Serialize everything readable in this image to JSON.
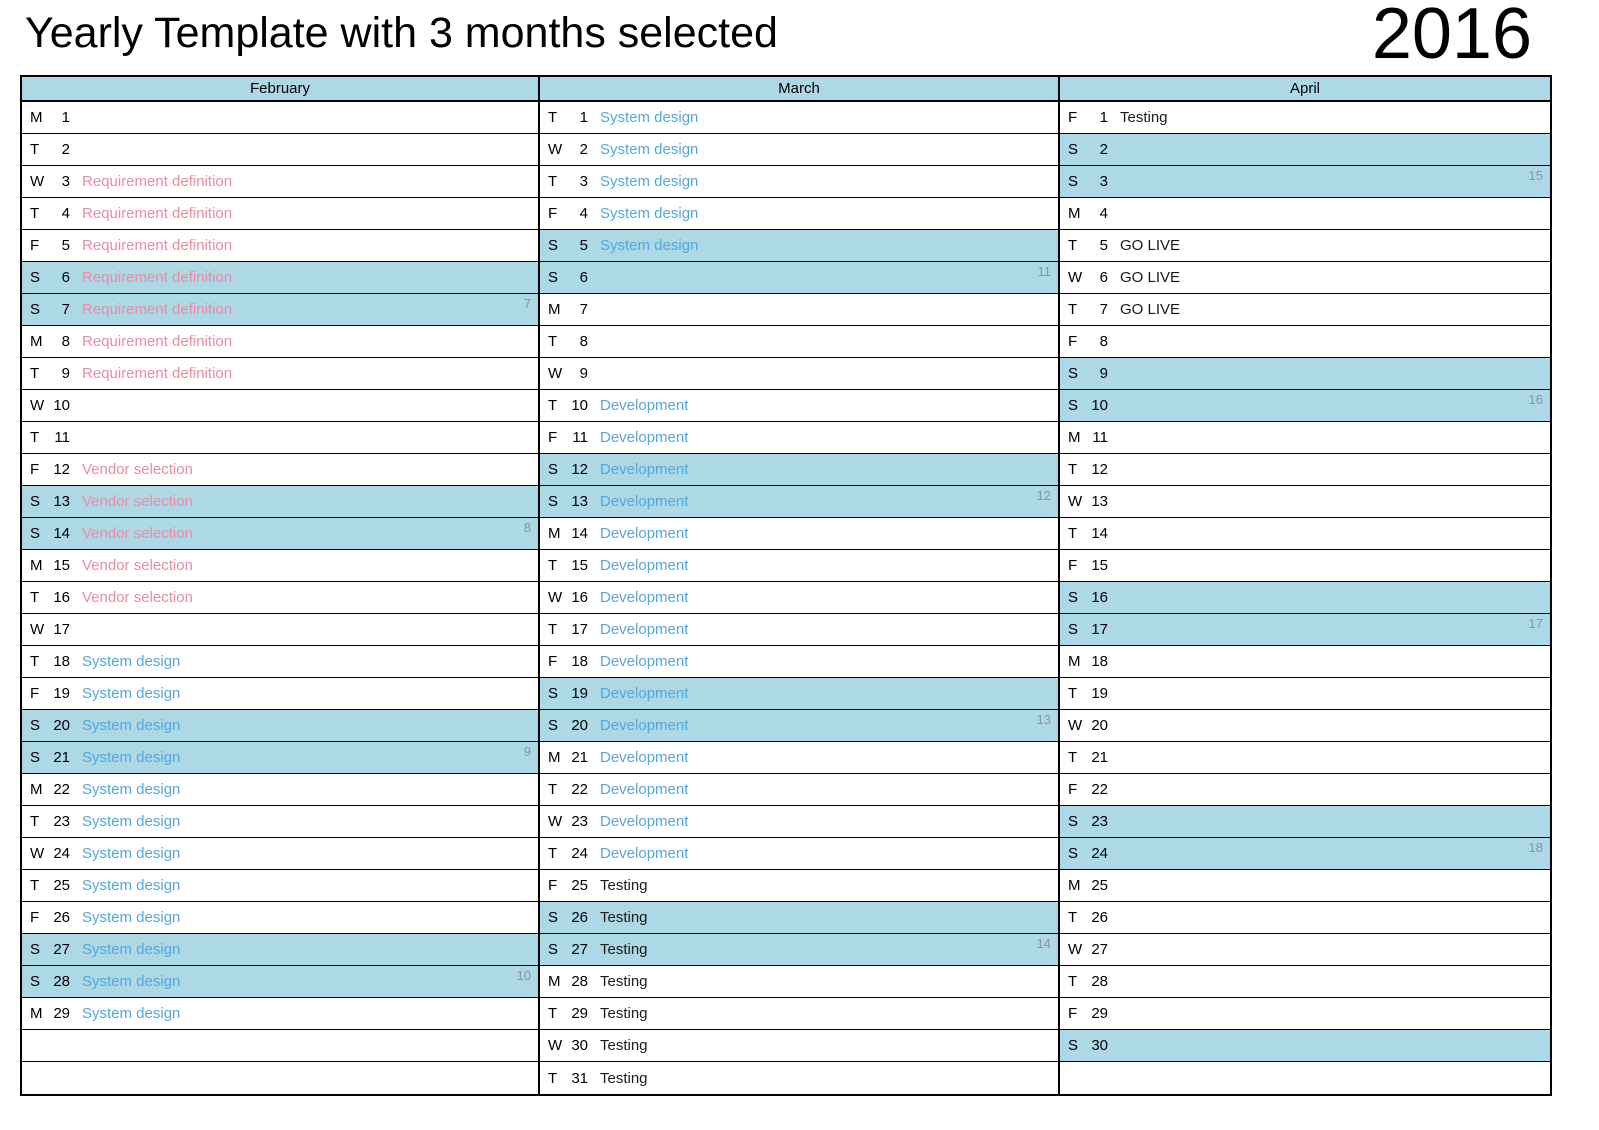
{
  "page": {
    "title": "Yearly Template with 3 months selected",
    "year": "2016"
  },
  "colors": {
    "accent_bg": "#ADD8E6",
    "border": "#000000",
    "week_number": "#8E9296",
    "text": {
      "pink": "#EC8BA0",
      "blue": "#53A7DC",
      "black": "#1A1A1A"
    }
  },
  "months": [
    {
      "name": "February",
      "filler_rows": 2,
      "days": [
        {
          "dow": "M",
          "date": 1
        },
        {
          "dow": "T",
          "date": 2
        },
        {
          "dow": "W",
          "date": 3,
          "event": "Requirement definition",
          "color": "pink"
        },
        {
          "dow": "T",
          "date": 4,
          "event": "Requirement definition",
          "color": "pink"
        },
        {
          "dow": "F",
          "date": 5,
          "event": "Requirement definition",
          "color": "pink"
        },
        {
          "dow": "S",
          "date": 6,
          "event": "Requirement definition",
          "color": "pink",
          "weekend": true
        },
        {
          "dow": "S",
          "date": 7,
          "event": "Requirement definition",
          "color": "pink",
          "weekend": true,
          "week": "7"
        },
        {
          "dow": "M",
          "date": 8,
          "event": "Requirement definition",
          "color": "pink"
        },
        {
          "dow": "T",
          "date": 9,
          "event": "Requirement definition",
          "color": "pink"
        },
        {
          "dow": "W",
          "date": 10
        },
        {
          "dow": "T",
          "date": 11
        },
        {
          "dow": "F",
          "date": 12,
          "event": "Vendor selection",
          "color": "pink"
        },
        {
          "dow": "S",
          "date": 13,
          "event": "Vendor selection",
          "color": "pink",
          "weekend": true
        },
        {
          "dow": "S",
          "date": 14,
          "event": "Vendor selection",
          "color": "pink",
          "weekend": true,
          "week": "8"
        },
        {
          "dow": "M",
          "date": 15,
          "event": "Vendor selection",
          "color": "pink"
        },
        {
          "dow": "T",
          "date": 16,
          "event": "Vendor selection",
          "color": "pink"
        },
        {
          "dow": "W",
          "date": 17
        },
        {
          "dow": "T",
          "date": 18,
          "event": "System design",
          "color": "blue"
        },
        {
          "dow": "F",
          "date": 19,
          "event": "System design",
          "color": "blue"
        },
        {
          "dow": "S",
          "date": 20,
          "event": "System design",
          "color": "blue",
          "weekend": true
        },
        {
          "dow": "S",
          "date": 21,
          "event": "System design",
          "color": "blue",
          "weekend": true,
          "week": "9"
        },
        {
          "dow": "M",
          "date": 22,
          "event": "System design",
          "color": "blue"
        },
        {
          "dow": "T",
          "date": 23,
          "event": "System design",
          "color": "blue"
        },
        {
          "dow": "W",
          "date": 24,
          "event": "System design",
          "color": "blue"
        },
        {
          "dow": "T",
          "date": 25,
          "event": "System design",
          "color": "blue"
        },
        {
          "dow": "F",
          "date": 26,
          "event": "System design",
          "color": "blue"
        },
        {
          "dow": "S",
          "date": 27,
          "event": "System design",
          "color": "blue",
          "weekend": true
        },
        {
          "dow": "S",
          "date": 28,
          "event": "System design",
          "color": "blue",
          "weekend": true,
          "week": "10"
        },
        {
          "dow": "M",
          "date": 29,
          "event": "System design",
          "color": "blue"
        }
      ]
    },
    {
      "name": "March",
      "filler_rows": 0,
      "days": [
        {
          "dow": "T",
          "date": 1,
          "event": "System design",
          "color": "blue"
        },
        {
          "dow": "W",
          "date": 2,
          "event": "System design",
          "color": "blue"
        },
        {
          "dow": "T",
          "date": 3,
          "event": "System design",
          "color": "blue"
        },
        {
          "dow": "F",
          "date": 4,
          "event": "System design",
          "color": "blue"
        },
        {
          "dow": "S",
          "date": 5,
          "event": "System design",
          "color": "blue",
          "weekend": true
        },
        {
          "dow": "S",
          "date": 6,
          "weekend": true,
          "week": "11"
        },
        {
          "dow": "M",
          "date": 7
        },
        {
          "dow": "T",
          "date": 8
        },
        {
          "dow": "W",
          "date": 9
        },
        {
          "dow": "T",
          "date": 10,
          "event": "Development",
          "color": "blue"
        },
        {
          "dow": "F",
          "date": 11,
          "event": "Development",
          "color": "blue"
        },
        {
          "dow": "S",
          "date": 12,
          "event": "Development",
          "color": "blue",
          "weekend": true
        },
        {
          "dow": "S",
          "date": 13,
          "event": "Development",
          "color": "blue",
          "weekend": true,
          "week": "12"
        },
        {
          "dow": "M",
          "date": 14,
          "event": "Development",
          "color": "blue"
        },
        {
          "dow": "T",
          "date": 15,
          "event": "Development",
          "color": "blue"
        },
        {
          "dow": "W",
          "date": 16,
          "event": "Development",
          "color": "blue"
        },
        {
          "dow": "T",
          "date": 17,
          "event": "Development",
          "color": "blue"
        },
        {
          "dow": "F",
          "date": 18,
          "event": "Development",
          "color": "blue"
        },
        {
          "dow": "S",
          "date": 19,
          "event": "Development",
          "color": "blue",
          "weekend": true
        },
        {
          "dow": "S",
          "date": 20,
          "event": "Development",
          "color": "blue",
          "weekend": true,
          "week": "13"
        },
        {
          "dow": "M",
          "date": 21,
          "event": "Development",
          "color": "blue"
        },
        {
          "dow": "T",
          "date": 22,
          "event": "Development",
          "color": "blue"
        },
        {
          "dow": "W",
          "date": 23,
          "event": "Development",
          "color": "blue"
        },
        {
          "dow": "T",
          "date": 24,
          "event": "Development",
          "color": "blue"
        },
        {
          "dow": "F",
          "date": 25,
          "event": "Testing",
          "color": "black"
        },
        {
          "dow": "S",
          "date": 26,
          "event": "Testing",
          "color": "black",
          "weekend": true
        },
        {
          "dow": "S",
          "date": 27,
          "event": "Testing",
          "color": "black",
          "weekend": true,
          "week": "14"
        },
        {
          "dow": "M",
          "date": 28,
          "event": "Testing",
          "color": "black"
        },
        {
          "dow": "T",
          "date": 29,
          "event": "Testing",
          "color": "black"
        },
        {
          "dow": "W",
          "date": 30,
          "event": "Testing",
          "color": "black"
        },
        {
          "dow": "T",
          "date": 31,
          "event": "Testing",
          "color": "black"
        }
      ]
    },
    {
      "name": "April",
      "filler_rows": 1,
      "days": [
        {
          "dow": "F",
          "date": 1,
          "event": "Testing",
          "color": "black"
        },
        {
          "dow": "S",
          "date": 2,
          "weekend": true
        },
        {
          "dow": "S",
          "date": 3,
          "weekend": true,
          "week": "15"
        },
        {
          "dow": "M",
          "date": 4
        },
        {
          "dow": "T",
          "date": 5,
          "event": "GO LIVE",
          "color": "black"
        },
        {
          "dow": "W",
          "date": 6,
          "event": "GO LIVE",
          "color": "black"
        },
        {
          "dow": "T",
          "date": 7,
          "event": "GO LIVE",
          "color": "black"
        },
        {
          "dow": "F",
          "date": 8
        },
        {
          "dow": "S",
          "date": 9,
          "weekend": true
        },
        {
          "dow": "S",
          "date": 10,
          "weekend": true,
          "week": "16"
        },
        {
          "dow": "M",
          "date": 11
        },
        {
          "dow": "T",
          "date": 12
        },
        {
          "dow": "W",
          "date": 13
        },
        {
          "dow": "T",
          "date": 14
        },
        {
          "dow": "F",
          "date": 15
        },
        {
          "dow": "S",
          "date": 16,
          "weekend": true
        },
        {
          "dow": "S",
          "date": 17,
          "weekend": true,
          "week": "17"
        },
        {
          "dow": "M",
          "date": 18
        },
        {
          "dow": "T",
          "date": 19
        },
        {
          "dow": "W",
          "date": 20
        },
        {
          "dow": "T",
          "date": 21
        },
        {
          "dow": "F",
          "date": 22
        },
        {
          "dow": "S",
          "date": 23,
          "weekend": true
        },
        {
          "dow": "S",
          "date": 24,
          "weekend": true,
          "week": "18"
        },
        {
          "dow": "M",
          "date": 25
        },
        {
          "dow": "T",
          "date": 26
        },
        {
          "dow": "W",
          "date": 27
        },
        {
          "dow": "T",
          "date": 28
        },
        {
          "dow": "F",
          "date": 29
        },
        {
          "dow": "S",
          "date": 30,
          "weekend": true
        }
      ]
    }
  ]
}
